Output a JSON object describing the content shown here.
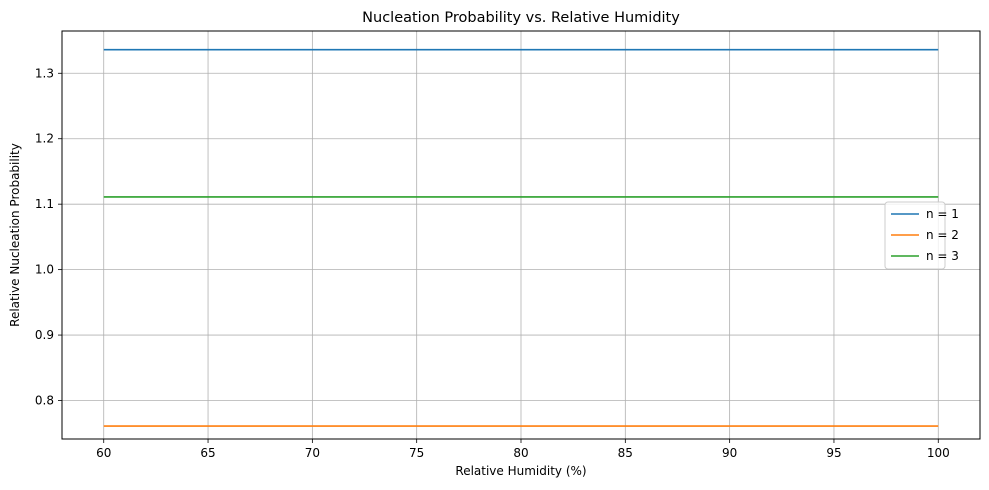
{
  "chart_data": {
    "type": "line",
    "title": "Nucleation Probability vs. Relative Humidity",
    "xlabel": "Relative Humidity (%)",
    "ylabel": "Relative Nucleation Probability",
    "xlim": [
      58,
      102
    ],
    "ylim": [
      0.7412,
      1.3646
    ],
    "x_ticks": [
      60,
      65,
      70,
      75,
      80,
      85,
      90,
      95,
      100
    ],
    "y_ticks": [
      0.8,
      0.9,
      1.0,
      1.1,
      1.2,
      1.3
    ],
    "x_tick_labels": [
      "60",
      "65",
      "70",
      "75",
      "80",
      "85",
      "90",
      "95",
      "100"
    ],
    "y_tick_labels": [
      "0.8",
      "0.9",
      "1.0",
      "1.1",
      "1.2",
      "1.3"
    ],
    "grid": true,
    "legend_position": "center-right",
    "series": [
      {
        "name": "n = 1",
        "color": "#1f77b4",
        "x": [
          60,
          100
        ],
        "values": [
          1.336,
          1.336
        ]
      },
      {
        "name": "n = 2",
        "color": "#ff7f0e",
        "x": [
          60,
          100
        ],
        "values": [
          0.761,
          0.761
        ]
      },
      {
        "name": "n = 3",
        "color": "#2ca02c",
        "x": [
          60,
          100
        ],
        "values": [
          1.111,
          1.111
        ]
      }
    ]
  }
}
